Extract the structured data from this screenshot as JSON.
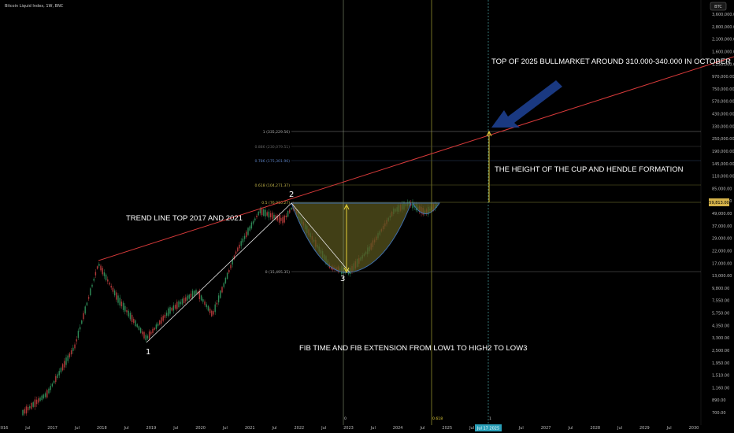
{
  "header": {
    "title": "Bitcoin Liquid Index, 1W, BNC",
    "symbol_badge": "BTC"
  },
  "colors": {
    "trendline": "#d83a3a",
    "fib_line": "#e6d23a",
    "cup_fill": "#57541e",
    "cup_stroke": "#3f6fb0",
    "arrow": "#1d3f8f",
    "candle_up": "#2e8b57",
    "candle_down": "#b33a3a",
    "current_price": "#d4b24a"
  },
  "chart_data": {
    "type": "line",
    "y_scale": "log",
    "x_labels": [
      "2016",
      "Jul",
      "2017",
      "Jul",
      "2018",
      "Jul",
      "2019",
      "Jul",
      "2020",
      "Jul",
      "2021",
      "Jul",
      "2022",
      "Jul",
      "2023",
      "Jul",
      "2024",
      "Jul",
      "2025",
      "Jul",
      "2026",
      "Jul",
      "2027",
      "Jul",
      "2028",
      "Jul",
      "2029",
      "Jul",
      "2030"
    ],
    "y_ticks": [
      "3,600,000.00",
      "2,800,000.00",
      "2,100,000.00",
      "1,600,000.00",
      "1,250,000.00",
      "970,000.00",
      "750,000.00",
      "570,000.00",
      "430,000.00",
      "330,000.00",
      "250,000.00",
      "190,000.00",
      "145,000.00",
      "110,000.00",
      "85,000.00",
      "65,000.00",
      "49,000.00",
      "37,000.00",
      "29,000.00",
      "22,000.00",
      "17,000.00",
      "13,000.00",
      "9,800.00",
      "7,550.00",
      "5,750.00",
      "4,350.00",
      "3,300.00",
      "2,500.00",
      "1,950.00",
      "1,510.00",
      "1,160.00",
      "890.00",
      "700.00"
    ],
    "current_price_label": "59,813.00",
    "fib_levels": [
      {
        "label": "1 (335,229.56)",
        "value": 335229.56
      },
      {
        "label": "0.886 (230,079.51)",
        "value": 230079.51
      },
      {
        "label": "0.786 (175,301.96)",
        "value": 175301.96
      },
      {
        "label": "0.618 (104,271.37)",
        "value": 104271.37
      },
      {
        "label": "0.5 (76,910.27)",
        "value": 76910.27
      },
      {
        "label": "0 (15,495.35)",
        "value": 15495.35
      }
    ],
    "fib_time_labels": [
      "0",
      "0.618",
      "1"
    ],
    "fib_time_date": "Jul 17 2025",
    "points": [
      "1",
      "2",
      "3"
    ],
    "annotations": [
      "TOP OF 2025 BULLMARKET AROUND 310.000-340.000 IN OCTOBER",
      "THE HEIGHT OF THE CUP AND HENDLE FORMATION",
      "TREND LINE TOP 2017 AND 2021",
      "FIB TIME AND FIB EXTENSION FROM LOW1 TO HIGH2 TO LOW3"
    ]
  }
}
